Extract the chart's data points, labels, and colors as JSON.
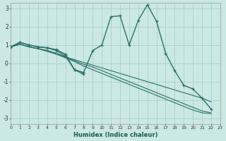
{
  "xlabel": "Humidex (Indice chaleur)",
  "bg_color": "#cce8e4",
  "grid_color": "#a0ccc8",
  "line_color": "#2a7068",
  "xlim": [
    0,
    23
  ],
  "ylim": [
    -3.3,
    3.3
  ],
  "yticks": [
    -3,
    -2,
    -1,
    0,
    1,
    2,
    3
  ],
  "xticks": [
    0,
    1,
    2,
    3,
    4,
    5,
    6,
    7,
    8,
    9,
    10,
    11,
    12,
    13,
    14,
    15,
    16,
    17,
    18,
    19,
    20,
    21,
    22,
    23
  ],
  "curve_main_x": [
    0,
    1,
    2,
    3,
    4,
    5,
    6,
    7,
    8,
    9,
    10,
    11,
    12,
    13,
    14,
    15,
    16,
    17,
    18,
    19,
    20,
    21,
    22
  ],
  "curve_main_y": [
    0.9,
    1.15,
    1.0,
    0.9,
    0.85,
    0.75,
    0.5,
    -0.35,
    -0.5,
    0.7,
    1.0,
    2.55,
    2.6,
    1.0,
    2.35,
    3.2,
    2.3,
    0.55,
    -0.4,
    -1.2,
    -1.4,
    -1.9,
    -2.5
  ],
  "curve2_x": [
    0,
    1,
    2,
    3,
    4,
    5,
    6,
    7,
    8
  ],
  "curve2_y": [
    0.9,
    1.15,
    1.0,
    0.9,
    0.85,
    0.7,
    0.4,
    -0.35,
    -0.6
  ],
  "curve3_x": [
    0,
    1,
    2,
    3,
    4,
    5,
    6,
    7,
    8,
    9,
    10,
    11,
    12,
    13,
    14,
    15,
    16,
    17,
    18,
    19,
    20,
    21,
    22
  ],
  "curve3_y": [
    0.9,
    1.05,
    0.9,
    0.8,
    0.7,
    0.55,
    0.35,
    0.2,
    0.05,
    -0.1,
    -0.25,
    -0.4,
    -0.55,
    -0.7,
    -0.85,
    -1.0,
    -1.15,
    -1.3,
    -1.45,
    -1.6,
    -1.75,
    -1.9,
    -2.1
  ],
  "curve4_x": [
    0,
    1,
    2,
    3,
    4,
    5,
    6,
    7,
    8,
    9,
    10,
    11,
    12,
    13,
    14,
    15,
    16,
    17,
    18,
    19,
    20,
    21,
    22
  ],
  "curve4_y": [
    0.9,
    1.05,
    0.9,
    0.8,
    0.7,
    0.55,
    0.35,
    0.15,
    -0.05,
    -0.2,
    -0.4,
    -0.6,
    -0.8,
    -1.0,
    -1.2,
    -1.4,
    -1.6,
    -1.8,
    -2.0,
    -2.2,
    -2.4,
    -2.6,
    -2.7
  ],
  "curve5_x": [
    0,
    1,
    2,
    3,
    4,
    5,
    6,
    7,
    8,
    9,
    10,
    11,
    12,
    13,
    14,
    15,
    16,
    17,
    18,
    19,
    20,
    21,
    22
  ],
  "curve5_y": [
    0.9,
    1.05,
    0.9,
    0.8,
    0.65,
    0.5,
    0.3,
    0.1,
    -0.15,
    -0.35,
    -0.55,
    -0.75,
    -0.95,
    -1.15,
    -1.35,
    -1.55,
    -1.75,
    -1.95,
    -2.15,
    -2.35,
    -2.55,
    -2.7,
    -2.75
  ]
}
